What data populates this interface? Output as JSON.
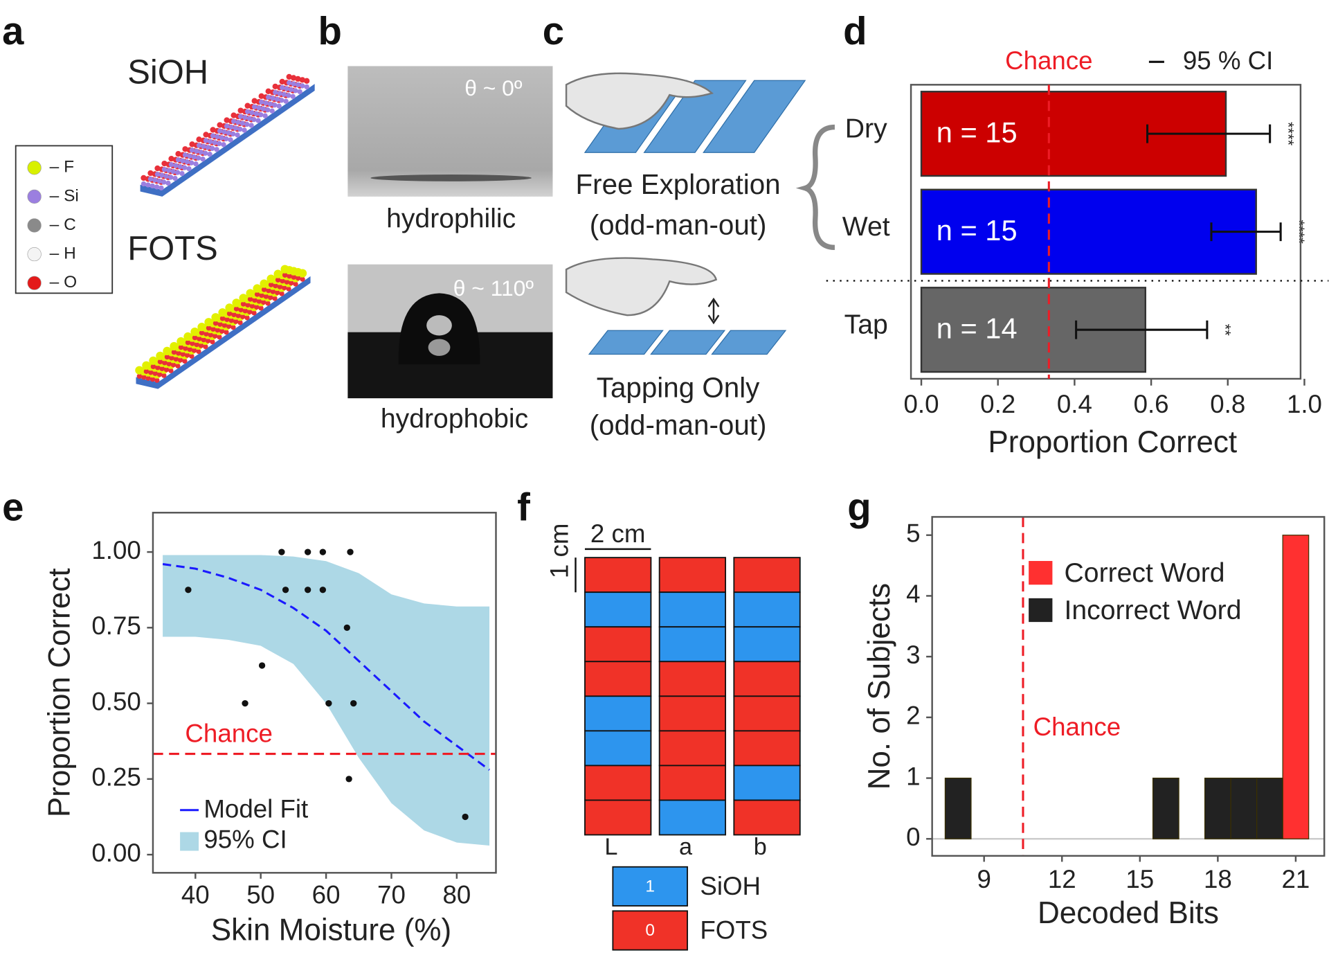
{
  "panels": {
    "a": {
      "label": "a",
      "surfaces": [
        "SiOH",
        "FOTS"
      ],
      "atoms": [
        "– F",
        "– Si",
        "– C",
        "– H",
        "– O"
      ]
    },
    "b": {
      "label": "b",
      "contact": [
        {
          "angle": "θ ~ 0º",
          "wetting": "hydrophilic"
        },
        {
          "angle": "θ ~ 110º",
          "wetting": "hydrophobic"
        }
      ]
    },
    "c": {
      "label": "c",
      "modes": [
        {
          "name": "Free Exploration",
          "note": "(odd-man-out)"
        },
        {
          "name": "Tapping Only",
          "note": "(odd-man-out)"
        }
      ]
    },
    "f": {
      "label": "f",
      "scale_x": "2 cm",
      "scale_y": "1 cm",
      "columns": [
        {
          "label": "L",
          "bits": [
            0,
            1,
            0,
            0,
            1,
            1,
            0,
            0
          ]
        },
        {
          "label": "a",
          "bits": [
            0,
            1,
            1,
            0,
            0,
            0,
            0,
            1
          ]
        },
        {
          "label": "b",
          "bits": [
            0,
            1,
            1,
            0,
            0,
            0,
            1,
            0
          ]
        }
      ],
      "legend": [
        {
          "bit": "1",
          "label": "SiOH",
          "color": "#2d95ee"
        },
        {
          "bit": "0",
          "label": "FOTS",
          "color": "#f03228"
        }
      ]
    }
  },
  "chart_data": [
    {
      "type": "bar",
      "label": "d",
      "orientation": "horizontal",
      "categories": [
        "Dry",
        "Wet",
        "Tap"
      ],
      "values": [
        0.795,
        0.874,
        0.585
      ],
      "ci": [
        [
          0.59,
          0.91
        ],
        [
          0.757,
          0.938
        ],
        [
          0.404,
          0.746
        ]
      ],
      "colors": [
        "#cc0000",
        "#0000ee",
        "#666666"
      ],
      "annotations": [
        "n = 15",
        "n = 15",
        "n = 14"
      ],
      "significance": [
        "****",
        "****",
        "**"
      ],
      "chance": 0.333,
      "chance_label": "Chance",
      "chance_color": "#ee1c25",
      "ci_label": "95 % CI",
      "xlabel": "Proportion Correct",
      "xlim": [
        -0.027,
        0.99
      ],
      "xticks": [
        {
          "value": 0,
          "label": "0.0"
        },
        0.2,
        0.4,
        0.6,
        0.8,
        {
          "value": 1,
          "label": "1.0"
        }
      ]
    },
    {
      "type": "scatter",
      "label": "e",
      "x": [
        38.9,
        47.6,
        50.2,
        53.2,
        53.8,
        57.2,
        57.2,
        59.5,
        59.5,
        60.4,
        63.7,
        63.2,
        63.5,
        64.2,
        81.3
      ],
      "values": [
        0.875,
        0.5,
        0.625,
        1.0,
        0.875,
        1.0,
        0.875,
        1.0,
        0.875,
        0.5,
        1.0,
        0.75,
        0.25,
        0.5,
        0.125
      ],
      "series": [
        {
          "name": "Model Fit",
          "color": "#1a1aff",
          "x": [
            35,
            40,
            45,
            50,
            55,
            60,
            65,
            70,
            75,
            80,
            85
          ],
          "values": [
            0.96,
            0.945,
            0.915,
            0.875,
            0.815,
            0.74,
            0.64,
            0.54,
            0.44,
            0.36,
            0.28
          ]
        }
      ],
      "band": {
        "name": "95% CI",
        "color": "#add8e6",
        "x": [
          35,
          40,
          45,
          50,
          55,
          60,
          65,
          70,
          75,
          80,
          85
        ],
        "lower": [
          0.72,
          0.72,
          0.71,
          0.69,
          0.63,
          0.5,
          0.32,
          0.17,
          0.08,
          0.04,
          0.03
        ],
        "upper": [
          0.99,
          0.99,
          0.99,
          0.99,
          0.985,
          0.97,
          0.93,
          0.86,
          0.83,
          0.82,
          0.82
        ]
      },
      "chance": 0.333,
      "chance_label": "Chance",
      "chance_color": "#ee1c25",
      "xlabel": "Skin Moisture (%)",
      "ylabel": "Proportion Correct",
      "xlim": [
        33.5,
        86
      ],
      "ylim": [
        -0.06,
        1.13
      ],
      "xticks": [
        40,
        50,
        60,
        70,
        80
      ],
      "yticks": [
        {
          "value": 0,
          "label": "0.00"
        },
        0.25,
        {
          "value": 0.5,
          "label": "0.50"
        },
        0.75,
        {
          "value": 1,
          "label": "1.00"
        }
      ]
    },
    {
      "type": "histogram",
      "label": "g",
      "bins": [
        7.5,
        8.5,
        9.5,
        10.5,
        11.5,
        12.5,
        13.5,
        14.5,
        15.5,
        16.5,
        17.5,
        18.5,
        19.5,
        20.5,
        21.5
      ],
      "series": [
        {
          "name": "Correct Word",
          "color": "#ff3030",
          "values": [
            0,
            0,
            0,
            0,
            0,
            0,
            0,
            0,
            0,
            0,
            0,
            0,
            0,
            5
          ]
        },
        {
          "name": "Incorrect Word",
          "color": "#222222",
          "values": [
            1,
            0,
            0,
            0,
            0,
            0,
            0,
            0,
            1,
            0,
            1,
            1,
            1,
            0
          ]
        }
      ],
      "chance": 10.5,
      "chance_label": "Chance",
      "chance_color": "#ee1c25",
      "xlabel": "Decoded Bits",
      "ylabel": "No. of Subjects",
      "xlim": [
        7,
        22.1
      ],
      "ylim": [
        -0.28,
        5.3
      ],
      "xticks": [
        9,
        12,
        15,
        18,
        21
      ],
      "yticks": [
        0,
        1,
        2,
        3,
        4,
        5
      ]
    }
  ]
}
